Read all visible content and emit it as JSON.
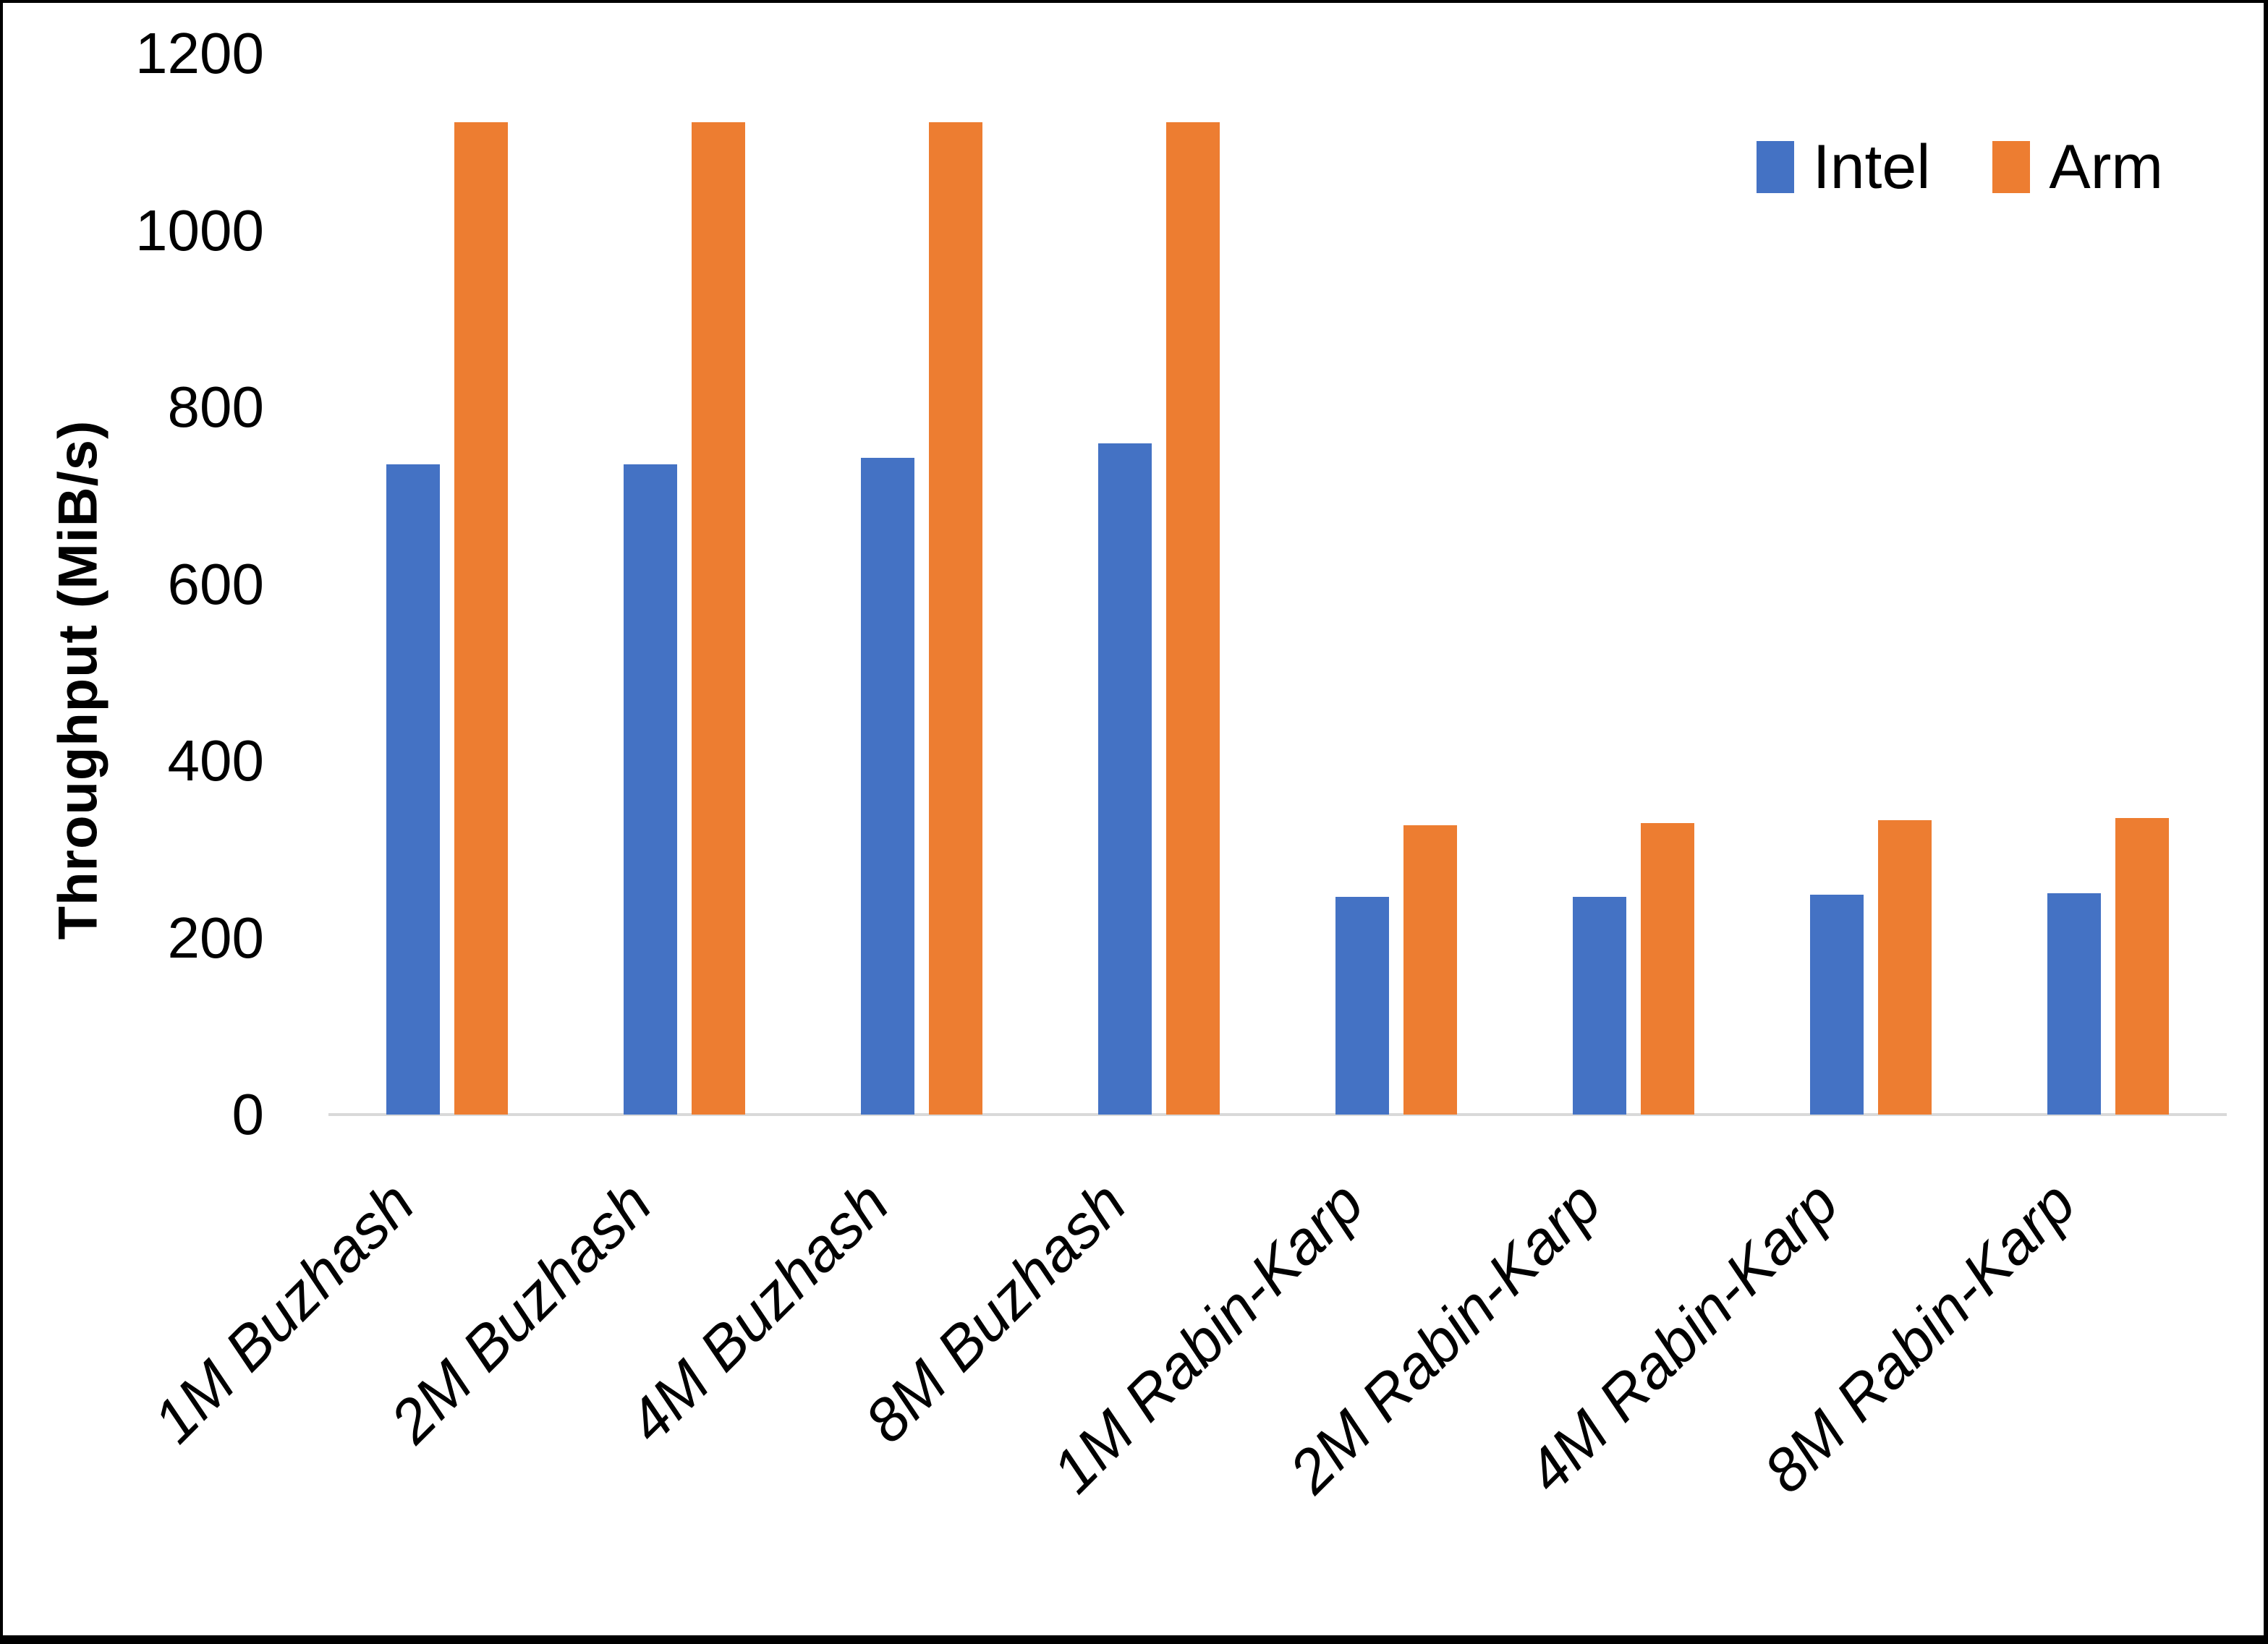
{
  "chart_data": {
    "type": "bar",
    "title": "",
    "categories": [
      "1M Buzhash",
      "2M Buzhash",
      "4M Buzhash",
      "8M Buzhash",
      "1M Rabin-Karp",
      "2M Rabin-Karp",
      "4M Rabin-Karp",
      "8M Rabin-Karp"
    ],
    "series": [
      {
        "name": "Intel",
        "color": "#4472C4",
        "values": [
          735,
          735,
          743,
          759,
          246,
          246,
          249,
          250
        ]
      },
      {
        "name": "Arm",
        "color": "#ED7D31",
        "values": [
          1122,
          1122,
          1122,
          1122,
          327,
          330,
          333,
          335
        ]
      }
    ],
    "xlabel": "",
    "ylabel": "Throughput (MiB/s)",
    "ylim": [
      0,
      1200
    ],
    "yticks": [
      0,
      200,
      400,
      600,
      800,
      1000,
      1200
    ],
    "grid": false,
    "legend_position": "top-right",
    "axis_line_color": "#D9D9D9",
    "text_color": "#000000"
  }
}
